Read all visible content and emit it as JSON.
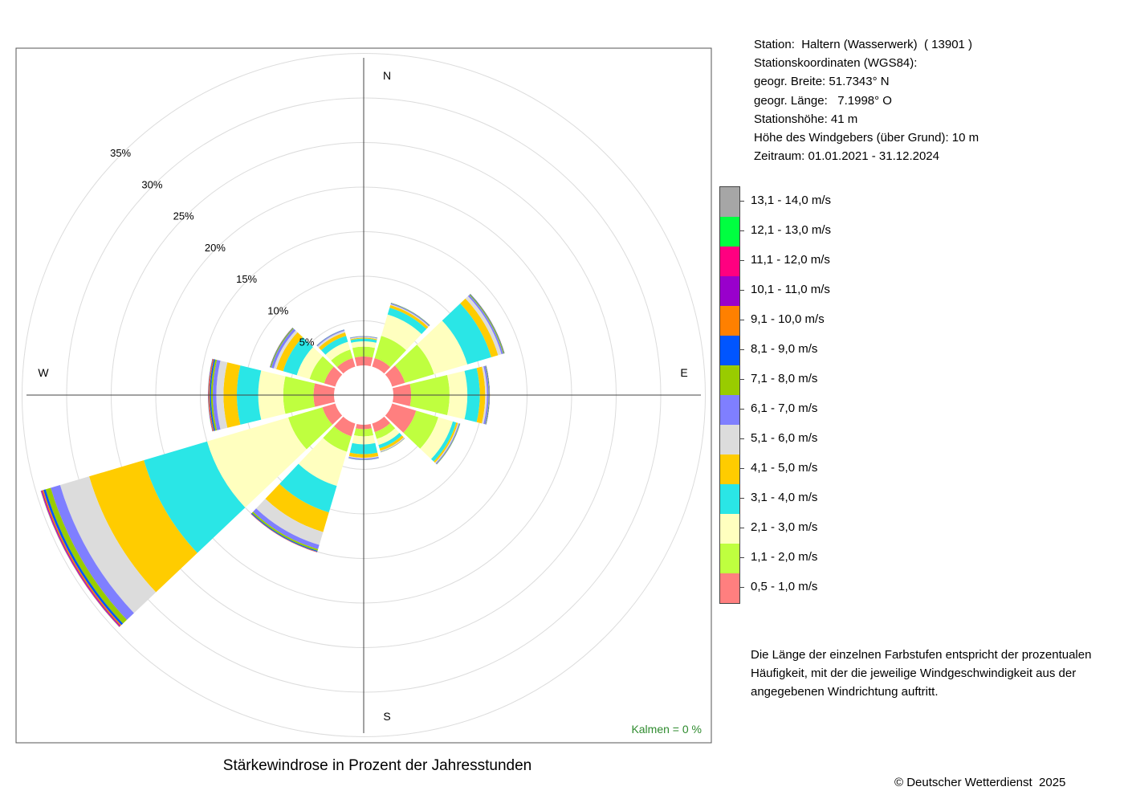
{
  "chart_data": {
    "type": "wind-rose",
    "title": "Stärkewindrose in Prozent der Jahresstunden",
    "radial_ticks": [
      "5%",
      "10%",
      "15%",
      "20%",
      "25%",
      "30%",
      "35%"
    ],
    "radial_values": [
      5,
      10,
      15,
      20,
      25,
      30,
      35
    ],
    "direction_labels": {
      "N": "N",
      "E": "E",
      "S": "S",
      "W": "W"
    },
    "directions_deg": [
      0,
      30,
      60,
      90,
      120,
      150,
      180,
      210,
      240,
      270,
      300,
      330
    ],
    "speed_classes": [
      "0,5 - 1,0 m/s",
      "1,1 - 2,0 m/s",
      "2,1 - 3,0 m/s",
      "3,1 - 4,0 m/s",
      "4,1 - 5,0 m/s",
      "5,1 - 6,0 m/s",
      "6,1 - 7,0 m/s",
      "7,1 - 8,0 m/s",
      "8,1 - 9,0 m/s",
      "9,1 - 10,0 m/s",
      "10,1 - 11,0 m/s",
      "11,1 - 12,0 m/s",
      "12,1 - 13,0 m/s",
      "13,1 - 14,0 m/s"
    ],
    "colors": [
      "#ff7f7f",
      "#bfff3f",
      "#ffffbf",
      "#2ae6e6",
      "#ffcc00",
      "#dcdcdc",
      "#7f7fff",
      "#99cc00",
      "#0055ff",
      "#ff8000",
      "#9900cc",
      "#ff0080",
      "#00ff40",
      "#a6a6a6"
    ],
    "series": [
      {
        "direction": 0,
        "values": [
          1.0,
          1.1,
          0.6,
          0.3,
          0.1,
          0.1,
          0.05,
          0.02,
          0.02,
          0,
          0,
          0,
          0,
          0
        ]
      },
      {
        "direction": 30,
        "values": [
          1.0,
          2.6,
          2.5,
          0.8,
          0.3,
          0.1,
          0.1,
          0.05,
          0.02,
          0,
          0,
          0,
          0,
          0
        ]
      },
      {
        "direction": 60,
        "values": [
          1.5,
          3.4,
          3.9,
          2.8,
          0.8,
          0.4,
          0.2,
          0.1,
          0.05,
          0.02,
          0,
          0,
          0,
          0
        ]
      },
      {
        "direction": 90,
        "values": [
          2.0,
          4.3,
          2.0,
          1.4,
          0.6,
          0.2,
          0.2,
          0.05,
          0.05,
          0.02,
          0,
          0,
          0,
          0
        ]
      },
      {
        "direction": 120,
        "values": [
          2.8,
          2.6,
          1.7,
          0.4,
          0.2,
          0.1,
          0.1,
          0.05,
          0.02,
          0,
          0,
          0,
          0,
          0
        ]
      },
      {
        "direction": 150,
        "values": [
          1.0,
          0.8,
          0.7,
          0.4,
          0.3,
          0.1,
          0.05,
          0.02,
          0,
          0,
          0,
          0,
          0,
          0
        ]
      },
      {
        "direction": 180,
        "values": [
          0.5,
          0.8,
          0.9,
          1.1,
          0.4,
          0.1,
          0.1,
          0.03,
          0.02,
          0,
          0,
          0,
          0,
          0
        ]
      },
      {
        "direction": 210,
        "values": [
          1.5,
          1.8,
          4.0,
          3.1,
          2.3,
          1.5,
          0.5,
          0.2,
          0.1,
          0.05,
          0.02,
          0,
          0,
          0
        ]
      },
      {
        "direction": 240,
        "values": [
          1.5,
          4.0,
          9.5,
          7.4,
          6.4,
          3.4,
          1.1,
          0.6,
          0.25,
          0.15,
          0.1,
          0.05,
          0.02,
          0.02
        ]
      },
      {
        "direction": 270,
        "values": [
          2.3,
          3.4,
          2.8,
          2.4,
          1.5,
          0.8,
          0.4,
          0.2,
          0.15,
          0.1,
          0.05,
          0.02,
          0.02,
          0
        ]
      },
      {
        "direction": 300,
        "values": [
          1.3,
          1.7,
          1.5,
          1.6,
          0.8,
          0.3,
          0.3,
          0.1,
          0.05,
          0.02,
          0,
          0,
          0,
          0
        ]
      },
      {
        "direction": 330,
        "values": [
          1.0,
          1.0,
          0.9,
          0.7,
          0.4,
          0.2,
          0.1,
          0.03,
          0.02,
          0,
          0,
          0,
          0,
          0
        ]
      }
    ],
    "calms_label": "Kalmen  =  0 %",
    "grid": true
  },
  "station": {
    "line1": "Station:  Haltern (Wasserwerk)  ( 13901 )",
    "line2": "Stationskoordinaten (WGS84):",
    "line3": "geogr. Breite: 51.7343° N",
    "line4": "geogr. Länge:   7.1998° O",
    "line5": "Stationshöhe: 41 m",
    "line6": "Höhe des Windgebers (über Grund): 10 m",
    "line7": "Zeitraum: 01.01.2021 - 31.12.2024"
  },
  "note": "Die Länge der einzelnen Farbstufen entspricht der prozentualen Häufigkeit, mit der die jeweilige Windgeschwindigkeit aus der angegebenen Windrichtung auftritt.",
  "copyright": "© Deutscher Wetterdienst  2025"
}
